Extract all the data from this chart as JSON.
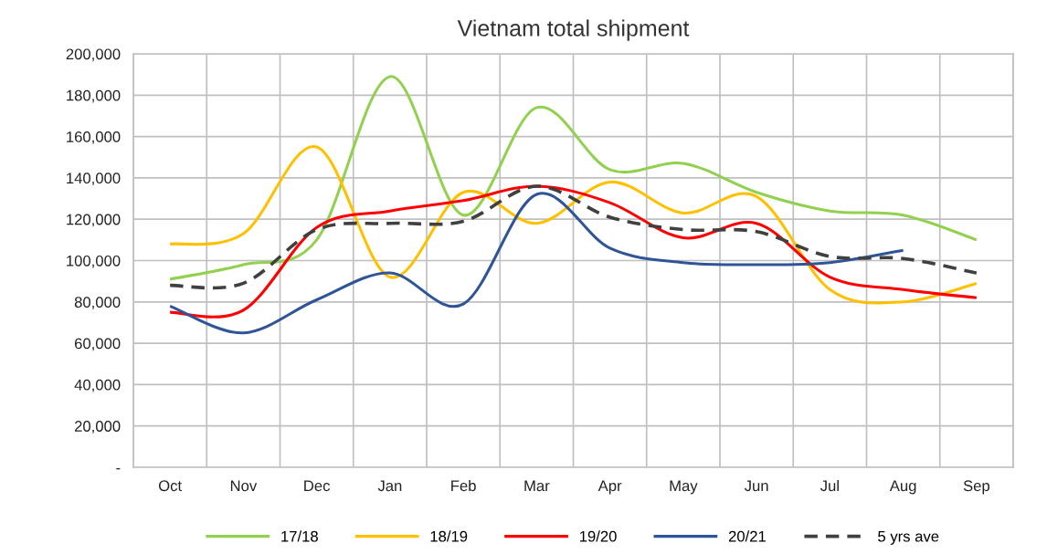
{
  "chart_data": {
    "type": "line",
    "title": "Vietnam total shipment",
    "categories": [
      "Oct",
      "Nov",
      "Dec",
      "Jan",
      "Feb",
      "Mar",
      "Apr",
      "May",
      "Jun",
      "Jul",
      "Aug",
      "Sep"
    ],
    "series": [
      {
        "name": "17/18",
        "color": "#92d050",
        "values": [
          91000,
          98000,
          110000,
          189000,
          122000,
          174000,
          144000,
          147000,
          133000,
          124000,
          122000,
          110000
        ]
      },
      {
        "name": "18/19",
        "color": "#ffc000",
        "values": [
          108000,
          113000,
          155000,
          92000,
          133000,
          118000,
          138000,
          123000,
          131000,
          86000,
          80000,
          89000
        ]
      },
      {
        "name": "19/20",
        "color": "#ff0000",
        "values": [
          75000,
          76000,
          116000,
          124000,
          129000,
          136000,
          128000,
          111000,
          118000,
          92000,
          86000,
          82000
        ]
      },
      {
        "name": "20/21",
        "color": "#2f5597",
        "values": [
          78000,
          65000,
          81000,
          94000,
          79000,
          132000,
          106000,
          99000,
          98000,
          99000,
          105000,
          null
        ]
      },
      {
        "name": "5 yrs ave",
        "color": "#404040",
        "line_style": "dashed",
        "values": [
          88000,
          89000,
          115000,
          118000,
          119000,
          136000,
          121000,
          115000,
          114000,
          102000,
          101000,
          94000
        ]
      }
    ],
    "ylim": [
      0,
      200000
    ],
    "yticks": [
      {
        "value": 0,
        "label": "-"
      },
      {
        "value": 20000,
        "label": "20,000"
      },
      {
        "value": 40000,
        "label": "40,000"
      },
      {
        "value": 60000,
        "label": "60,000"
      },
      {
        "value": 80000,
        "label": "80,000"
      },
      {
        "value": 100000,
        "label": "100,000"
      },
      {
        "value": 120000,
        "label": "120,000"
      },
      {
        "value": 140000,
        "label": "140,000"
      },
      {
        "value": 160000,
        "label": "160,000"
      },
      {
        "value": 180000,
        "label": "180,000"
      },
      {
        "value": 200000,
        "label": "200,000"
      }
    ],
    "grid": true,
    "legend": "bottom",
    "line_style": "solid",
    "marker": "none"
  }
}
